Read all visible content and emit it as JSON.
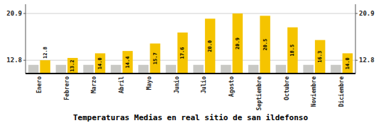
{
  "chart_data": {
    "type": "bar",
    "title": "Temperaturas Medias en real sitio de san ildefonso",
    "categories": [
      "Enero",
      "Febrero",
      "Marzo",
      "Abril",
      "Mayo",
      "Junio",
      "Julio",
      "Agosto",
      "Septiembre",
      "Octubre",
      "Noviembre",
      "Diciembre"
    ],
    "series": [
      {
        "color": "#C8C8C4",
        "values": [
          12.0,
          12.0,
          12.0,
          12.0,
          12.0,
          12.0,
          12.0,
          12.0,
          12.0,
          12.0,
          12.0,
          12.0
        ]
      },
      {
        "color": "#F5C400",
        "values": [
          12.8,
          13.2,
          14.0,
          14.4,
          15.7,
          17.6,
          20.0,
          20.9,
          20.5,
          18.5,
          16.3,
          14.0
        ],
        "value_labels": [
          "12.8",
          "13.2",
          "14.0",
          "14.4",
          "15.7",
          "17.6",
          "20.0",
          "20.9",
          "20.5",
          "18.5",
          "16.3",
          "14.0"
        ],
        "data_labels": true
      }
    ],
    "ylim": [
      10.5,
      22.5
    ],
    "yticks": [
      12.8,
      20.9
    ],
    "y2lim": [
      10.5,
      22.5
    ],
    "y2ticks": [
      12.8,
      20.9
    ],
    "grid": true
  }
}
